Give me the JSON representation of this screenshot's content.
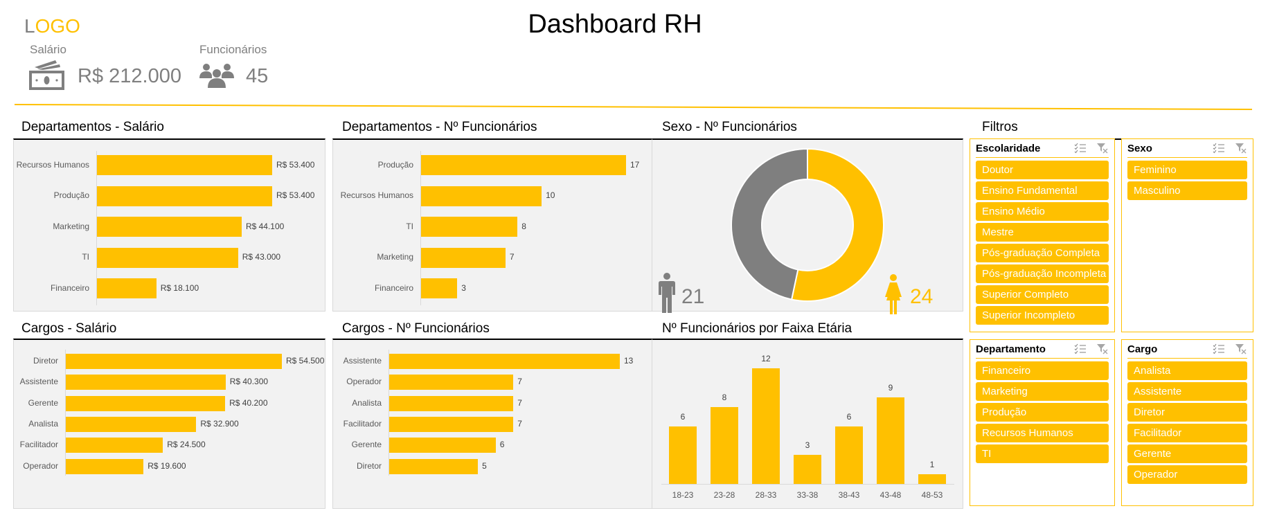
{
  "header": {
    "logo_first": "L",
    "logo_rest": "OGO",
    "title": "Dashboard RH"
  },
  "kpis": {
    "salary_label": "Salário",
    "salary_value": "R$ 212.000",
    "salary_icon": "money-icon",
    "employees_label": "Funcionários",
    "employees_value": "45",
    "employees_icon": "people-icon"
  },
  "colors": {
    "accent": "#ffc000",
    "gray": "#7f7f7f",
    "panel_bg": "#f2f2f2"
  },
  "charts": {
    "dept_salary": {
      "title": "Departamentos  - Salário"
    },
    "dept_count": {
      "title": "Departamentos  - Nº Funcionários"
    },
    "sex": {
      "title": "Sexo - Nº Funcionários",
      "male_value": "21",
      "female_value": "24"
    },
    "role_salary": {
      "title": "Cargos - Salário"
    },
    "role_count": {
      "title": "Cargos - Nº Funcionários"
    },
    "age": {
      "title": "Nº Funcionários por Faixa Etária"
    }
  },
  "chart_data": [
    {
      "id": "dept_salary",
      "type": "bar",
      "orientation": "horizontal",
      "categories": [
        "Recursos Humanos",
        "Produção",
        "Marketing",
        "TI",
        "Financeiro"
      ],
      "values": [
        53400,
        53400,
        44100,
        43000,
        18100
      ],
      "labels": [
        "R$ 53.400",
        "R$ 53.400",
        "R$ 44.100",
        "R$ 43.000",
        "R$ 18.100"
      ]
    },
    {
      "id": "dept_count",
      "type": "bar",
      "orientation": "horizontal",
      "categories": [
        "Produção",
        "Recursos Humanos",
        "TI",
        "Marketing",
        "Financeiro"
      ],
      "values": [
        17,
        10,
        8,
        7,
        3
      ],
      "labels": [
        "17",
        "10",
        "8",
        "7",
        "3"
      ]
    },
    {
      "id": "sex",
      "type": "pie",
      "style": "doughnut",
      "categories": [
        "Feminino",
        "Masculino"
      ],
      "values": [
        24,
        21
      ],
      "colors": [
        "#ffc000",
        "#7f7f7f"
      ]
    },
    {
      "id": "role_salary",
      "type": "bar",
      "orientation": "horizontal",
      "categories": [
        "Diretor",
        "Assistente",
        "Gerente",
        "Analista",
        "Facilitador",
        "Operador"
      ],
      "values": [
        54500,
        40300,
        40200,
        32900,
        24500,
        19600
      ],
      "labels": [
        "R$ 54.500",
        "R$ 40.300",
        "R$ 40.200",
        "R$ 32.900",
        "R$ 24.500",
        "R$ 19.600"
      ]
    },
    {
      "id": "role_count",
      "type": "bar",
      "orientation": "horizontal",
      "categories": [
        "Assistente",
        "Operador",
        "Analista",
        "Facilitador",
        "Gerente",
        "Diretor"
      ],
      "values": [
        13,
        7,
        7,
        7,
        6,
        5
      ],
      "labels": [
        "13",
        "7",
        "7",
        "7",
        "6",
        "5"
      ]
    },
    {
      "id": "age",
      "type": "bar",
      "orientation": "vertical",
      "categories": [
        "18-23",
        "23-28",
        "28-33",
        "33-38",
        "38-43",
        "43-48",
        "48-53"
      ],
      "values": [
        6,
        8,
        12,
        3,
        6,
        9,
        1
      ],
      "labels": [
        "6",
        "8",
        "12",
        "3",
        "6",
        "9",
        "1"
      ]
    }
  ],
  "filters": {
    "title": "Filtros",
    "slicers": [
      {
        "name": "Escolaridade",
        "items": [
          "Doutor",
          "Ensino Fundamental",
          "Ensino Médio",
          "Mestre",
          "Pós-graduação Completa",
          "Pós-graduação Incompleta",
          "Superior Completo",
          "Superior Incompleto"
        ]
      },
      {
        "name": "Sexo",
        "items": [
          "Feminino",
          "Masculino"
        ]
      },
      {
        "name": "Departamento",
        "items": [
          "Financeiro",
          "Marketing",
          "Produção",
          "Recursos Humanos",
          "TI"
        ]
      },
      {
        "name": "Cargo",
        "items": [
          "Analista",
          "Assistente",
          "Diretor",
          "Facilitador",
          "Gerente",
          "Operador"
        ]
      }
    ]
  }
}
